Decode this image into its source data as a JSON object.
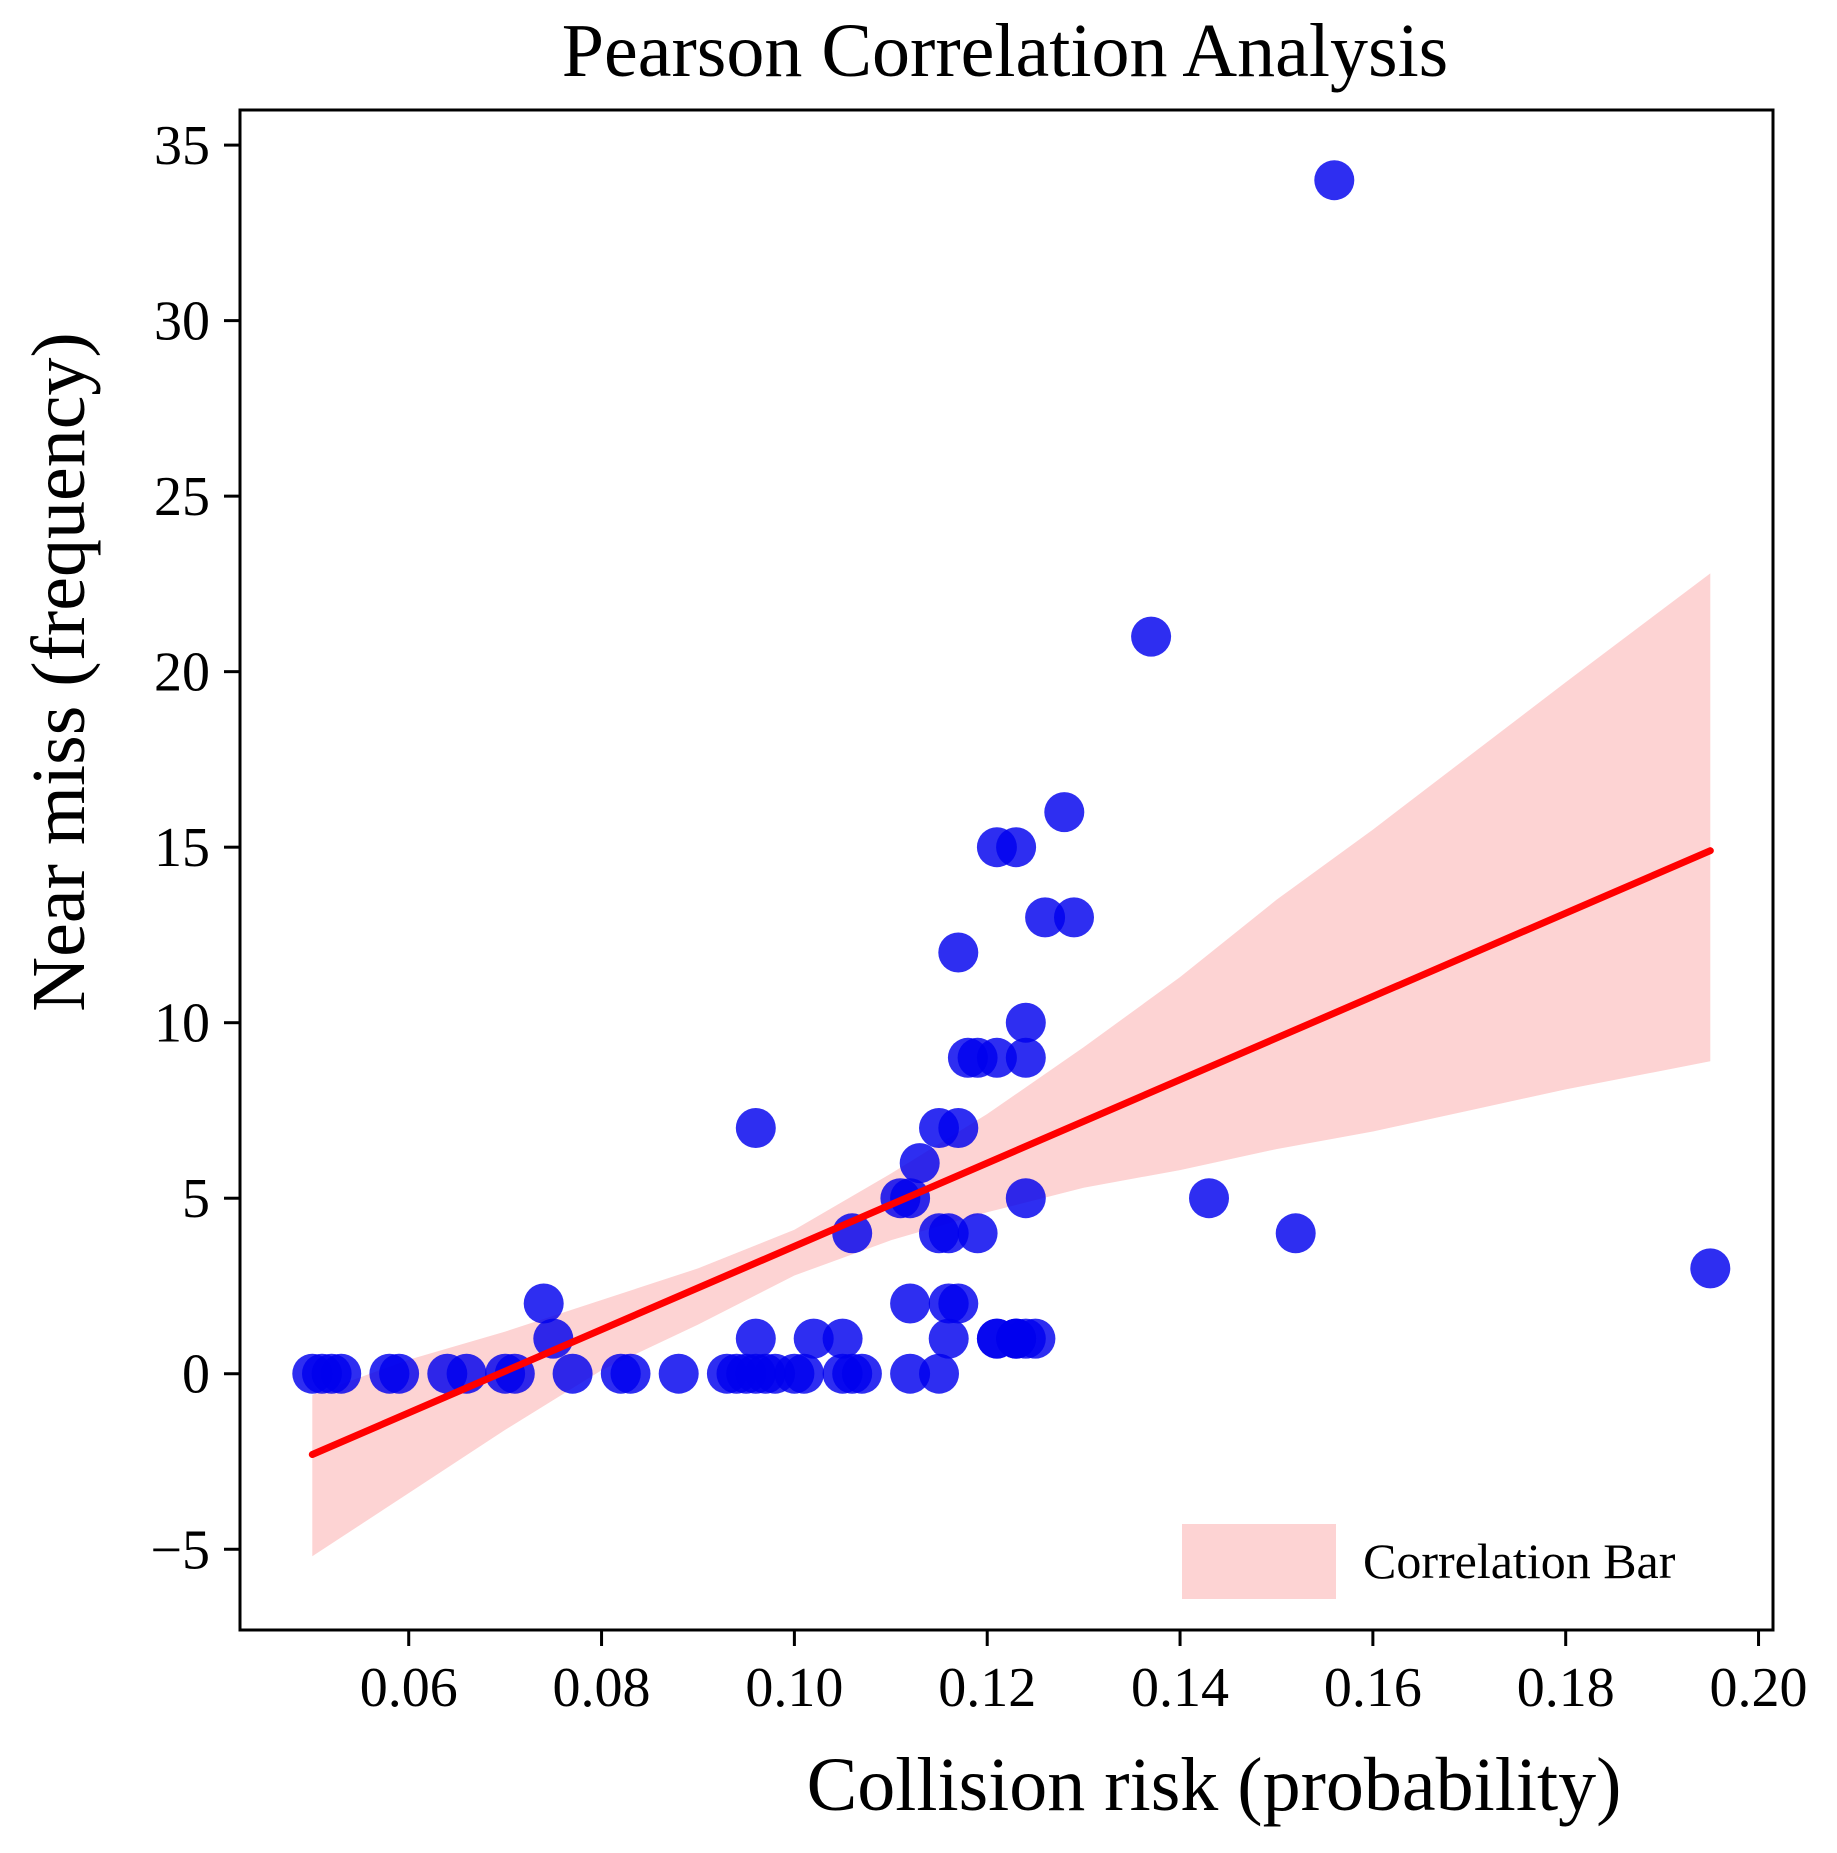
{
  "chart_data": {
    "type": "scatter",
    "title": "Pearson Correlation Analysis",
    "xlabel": "Collision risk (probability)",
    "ylabel": "Near miss  (frequency)",
    "xlim": [
      0.0425,
      0.2015
    ],
    "ylim": [
      -7.3,
      36.0
    ],
    "xticks": [
      0.06,
      0.08,
      0.1,
      0.12,
      0.14,
      0.16,
      0.18,
      0.2
    ],
    "xtick_labels": [
      "0.06",
      "0.08",
      "0.10",
      "0.12",
      "0.14",
      "0.16",
      "0.18",
      "0.20"
    ],
    "yticks": [
      -5,
      0,
      5,
      10,
      15,
      20,
      25,
      30,
      35
    ],
    "ytick_labels": [
      "−5",
      "0",
      "5",
      "10",
      "15",
      "20",
      "25",
      "30",
      "35"
    ],
    "grid": false,
    "legend": {
      "position": "bottom-right",
      "entries": [
        "Correlation Bar"
      ]
    },
    "colors": {
      "points": "#0000ee",
      "line": "#ff0000",
      "band": "#fdd3d3"
    },
    "points": {
      "x": [
        0.05,
        0.051,
        0.052,
        0.053,
        0.058,
        0.059,
        0.064,
        0.066,
        0.07,
        0.071,
        0.077,
        0.074,
        0.075,
        0.082,
        0.083,
        0.088,
        0.093,
        0.094,
        0.095,
        0.096,
        0.097,
        0.098,
        0.1,
        0.101,
        0.105,
        0.106,
        0.107,
        0.096,
        0.096,
        0.102,
        0.105,
        0.106,
        0.111,
        0.112,
        0.113,
        0.112,
        0.112,
        0.115,
        0.115,
        0.116,
        0.116,
        0.117,
        0.117,
        0.115,
        0.116,
        0.117,
        0.118,
        0.119,
        0.121,
        0.123,
        0.124,
        0.121,
        0.123,
        0.124,
        0.124,
        0.121,
        0.123,
        0.125,
        0.126,
        0.128,
        0.129,
        0.137,
        0.143,
        0.152,
        0.156,
        0.195,
        0.123,
        0.124,
        0.119,
        0.121
      ],
      "y": [
        0,
        0,
        0,
        0,
        0,
        0,
        0,
        0,
        0,
        0,
        0,
        2,
        1,
        0,
        0,
        0,
        0,
        0,
        0,
        0,
        0,
        0,
        0,
        0,
        0,
        0,
        0,
        1,
        7,
        1,
        1,
        4,
        5,
        5,
        6,
        2,
        0,
        0,
        4,
        4,
        1,
        2,
        7,
        7,
        2,
        12,
        9,
        9,
        9,
        1,
        1,
        15,
        15,
        9,
        10,
        1,
        1,
        1,
        13,
        16,
        13,
        21,
        5,
        4,
        34,
        3,
        1,
        5,
        4,
        1
      ]
    },
    "regression_line": {
      "x": [
        0.05,
        0.195
      ],
      "y": [
        -2.3,
        14.9
      ]
    },
    "confidence_band": {
      "x": [
        0.05,
        0.06,
        0.07,
        0.08,
        0.09,
        0.1,
        0.11,
        0.12,
        0.13,
        0.14,
        0.15,
        0.16,
        0.17,
        0.18,
        0.195
      ],
      "upper": [
        -0.6,
        0.4,
        1.2,
        2.1,
        3.0,
        4.1,
        5.7,
        7.4,
        9.3,
        11.3,
        13.5,
        15.5,
        17.6,
        19.7,
        22.8
      ],
      "lower": [
        -5.2,
        -3.4,
        -1.6,
        0.1,
        1.4,
        2.8,
        3.8,
        4.6,
        5.3,
        5.8,
        6.4,
        6.9,
        7.5,
        8.1,
        8.9
      ]
    }
  }
}
